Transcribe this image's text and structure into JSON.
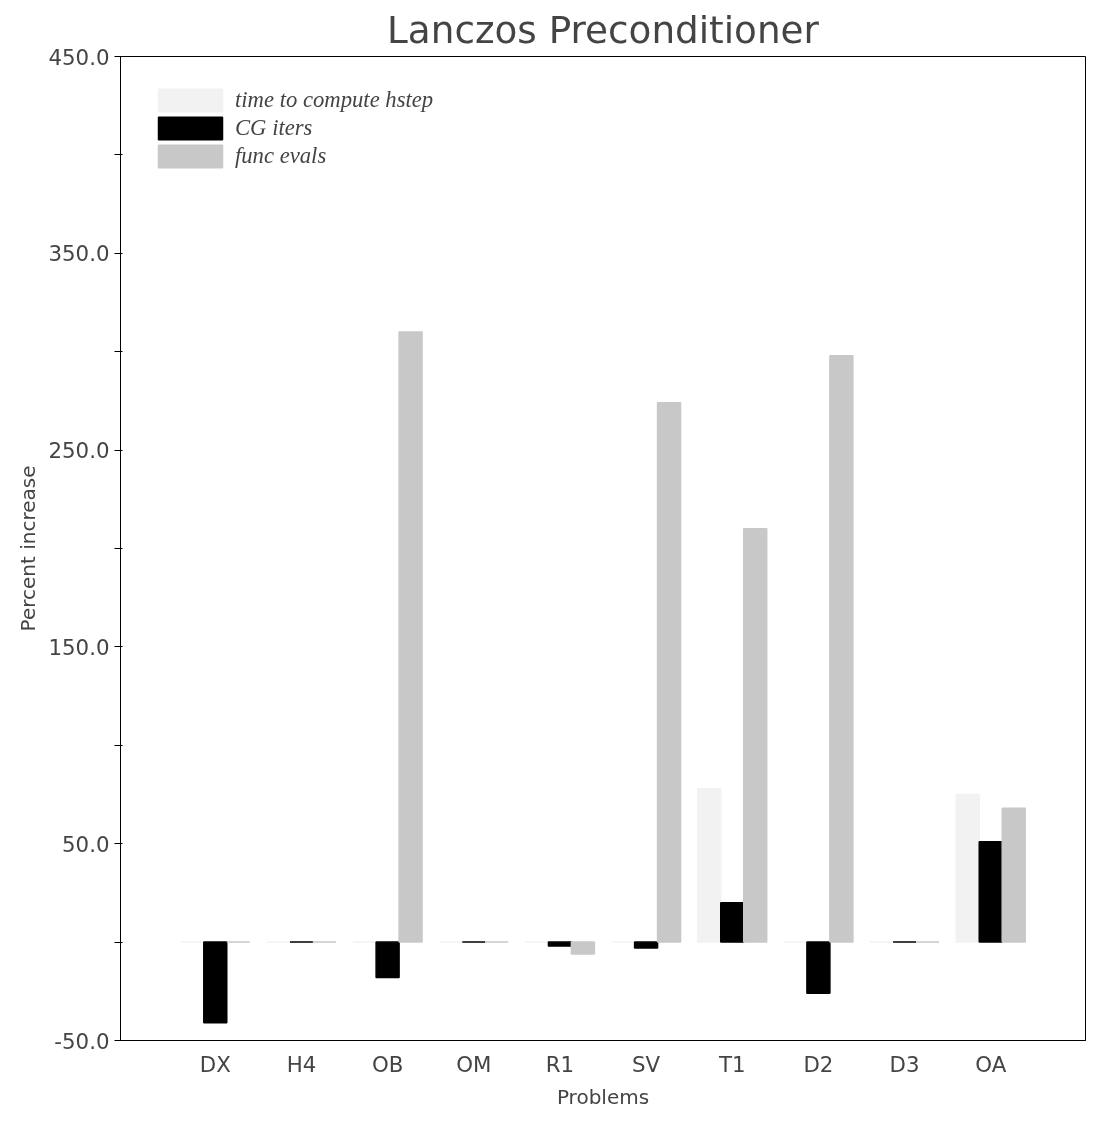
{
  "chart_data": {
    "type": "bar",
    "title": "Lanczos Preconditioner",
    "xlabel": "Problems",
    "ylabel": "Percent increase",
    "categories": [
      "DX",
      "H4",
      "OB",
      "OM",
      "R1",
      "SV",
      "T1",
      "D2",
      "D3",
      "OA"
    ],
    "series": [
      {
        "name": "time to compute hstep",
        "color": "#f2f2f2",
        "values": [
          0,
          0,
          0,
          0,
          0,
          0,
          78,
          0,
          0,
          75
        ]
      },
      {
        "name": "CG iters",
        "color": "#000000",
        "values": [
          -41,
          0,
          -18,
          0,
          -2,
          -3,
          20,
          -26,
          0,
          51
        ]
      },
      {
        "name": "func evals",
        "color": "#c8c8c8",
        "values": [
          0,
          0,
          310,
          0,
          -6,
          274,
          210,
          298,
          0,
          68
        ]
      }
    ],
    "ylim": [
      -50,
      450
    ],
    "yticks": [
      {
        "value": -50,
        "label": "-50.0"
      },
      {
        "value": 0,
        "label": null
      },
      {
        "value": 50,
        "label": "50.0"
      },
      {
        "value": 100,
        "label": null
      },
      {
        "value": 150,
        "label": "150.0"
      },
      {
        "value": 200,
        "label": null
      },
      {
        "value": 250,
        "label": "250.0"
      },
      {
        "value": 300,
        "label": null
      },
      {
        "value": 350,
        "label": "350.0"
      },
      {
        "value": 400,
        "label": null
      },
      {
        "value": 450,
        "label": "450.0"
      }
    ],
    "grid": false,
    "legend": "top left"
  }
}
